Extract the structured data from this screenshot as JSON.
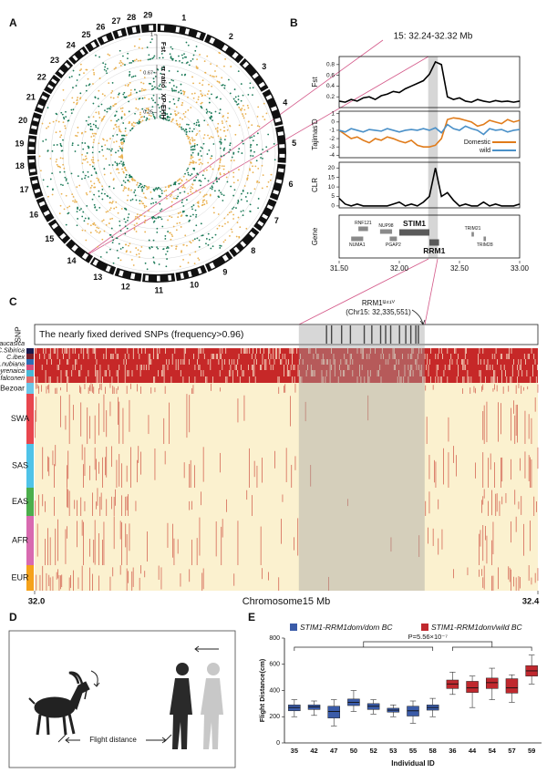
{
  "panel_labels": [
    "A",
    "B",
    "C",
    "D",
    "E"
  ],
  "flight_diagram": {
    "label": "Flight distance"
  },
  "chart_data": [
    {
      "type": "circos",
      "chromosomes": [
        "1",
        "2",
        "3",
        "4",
        "5",
        "6",
        "7",
        "8",
        "9",
        "10",
        "11",
        "12",
        "13",
        "14",
        "15",
        "16",
        "17",
        "18",
        "19",
        "20",
        "21",
        "22",
        "23",
        "24",
        "25",
        "26",
        "27",
        "28",
        "29"
      ],
      "lengths": [
        157,
        137,
        121,
        121,
        119,
        118,
        108,
        113,
        91,
        101,
        106,
        87,
        83,
        95,
        85,
        81,
        72,
        67,
        63,
        72,
        70,
        61,
        62,
        65,
        43,
        51,
        45,
        45,
        51
      ],
      "colors": [
        "#1b7a58",
        "#e9b04e"
      ],
      "tracks": [
        {
          "name": "Fst",
          "ylim": [
            0,
            1
          ],
          "yticks": [
            1
          ]
        },
        {
          "name": "π ratio",
          "ylim": [
            0,
            1
          ],
          "yticks": [
            0.67
          ]
        },
        {
          "name": "XP-EHH",
          "ylim": [
            0,
            1
          ],
          "yticks": [
            0.25
          ]
        }
      ]
    },
    {
      "type": "line",
      "title": "15: 32.24-32.32 Mb",
      "ylabel": "Fst",
      "x": [
        31.5,
        31.55,
        31.6,
        31.65,
        31.7,
        31.75,
        31.8,
        31.85,
        31.9,
        31.95,
        32.0,
        32.05,
        32.1,
        32.15,
        32.2,
        32.25,
        32.3,
        32.35,
        32.4,
        32.45,
        32.5,
        32.55,
        32.6,
        32.65,
        32.7,
        32.75,
        32.8,
        32.85,
        32.9,
        32.95,
        33.0
      ],
      "xlim": [
        31.5,
        33.0
      ],
      "ylim": [
        0,
        0.95
      ],
      "yticks": [
        0.2,
        0.4,
        0.6,
        0.8
      ],
      "highlight": [
        32.24,
        32.32
      ],
      "series": [
        {
          "color": "#000000",
          "values": [
            0.12,
            0.1,
            0.15,
            0.12,
            0.18,
            0.2,
            0.15,
            0.22,
            0.25,
            0.3,
            0.28,
            0.35,
            0.4,
            0.45,
            0.5,
            0.62,
            0.85,
            0.8,
            0.2,
            0.15,
            0.18,
            0.12,
            0.1,
            0.15,
            0.12,
            0.1,
            0.13,
            0.11,
            0.12,
            0.1,
            0.12
          ]
        }
      ]
    },
    {
      "type": "line",
      "ylabel": "Tajimas'D",
      "legend": "lower right",
      "x": [
        31.5,
        31.55,
        31.6,
        31.65,
        31.7,
        31.75,
        31.8,
        31.85,
        31.9,
        31.95,
        32.0,
        32.05,
        32.1,
        32.15,
        32.2,
        32.25,
        32.3,
        32.35,
        32.4,
        32.45,
        32.5,
        32.55,
        32.6,
        32.65,
        32.7,
        32.75,
        32.8,
        32.85,
        32.9,
        32.95,
        33.0
      ],
      "xlim": [
        31.5,
        33.0
      ],
      "ylim": [
        -4.3,
        1.3
      ],
      "yticks": [
        -4,
        -3,
        -2,
        -1,
        0,
        1
      ],
      "series": [
        {
          "name": "Domestic",
          "color": "#e07b1a",
          "values": [
            -1,
            -1.5,
            -2,
            -1.8,
            -2.2,
            -2.5,
            -2,
            -2.2,
            -1.8,
            -2,
            -2.3,
            -2.5,
            -2.2,
            -2.8,
            -3,
            -3,
            -2.8,
            -2,
            0.3,
            0.5,
            0.4,
            0.2,
            0,
            -0.5,
            -0.3,
            0.2,
            0,
            -0.2,
            0.3,
            0,
            0.2
          ]
        },
        {
          "name": "wild",
          "color": "#4a90c8",
          "values": [
            -1,
            -1.2,
            -0.8,
            -1,
            -1.2,
            -0.9,
            -1,
            -1.1,
            -0.8,
            -1,
            -1.2,
            -1,
            -0.9,
            -1,
            -0.8,
            -1,
            -0.7,
            -1.3,
            -0.3,
            -0.8,
            -1,
            -0.5,
            -0.8,
            -1,
            -1.5,
            -0.8,
            -1,
            -0.9,
            -1.2,
            -1,
            -0.9
          ]
        }
      ]
    },
    {
      "type": "line",
      "ylabel": "CLR",
      "x": [
        31.5,
        31.55,
        31.6,
        31.65,
        31.7,
        31.75,
        31.8,
        31.85,
        31.9,
        31.95,
        32.0,
        32.05,
        32.1,
        32.15,
        32.2,
        32.25,
        32.3,
        32.35,
        32.4,
        32.45,
        32.5,
        32.55,
        32.6,
        32.65,
        32.7,
        32.75,
        32.8,
        32.85,
        32.9,
        32.95,
        33.0
      ],
      "xlim": [
        31.5,
        33.0
      ],
      "ylim": [
        -1,
        23
      ],
      "yticks": [
        0,
        5,
        10,
        15,
        20
      ],
      "series": [
        {
          "color": "#000000",
          "values": [
            4,
            1,
            0,
            1,
            0,
            0,
            0,
            0,
            0,
            1,
            2,
            0,
            1,
            0,
            2,
            5,
            20,
            5,
            7,
            3,
            0,
            1,
            0,
            0,
            2,
            0,
            1,
            0,
            0,
            0,
            1
          ]
        }
      ]
    },
    {
      "type": "gene",
      "ylabel": "Gene",
      "xlim": [
        31.5,
        33.0
      ],
      "xticks": [
        {
          "value": 31.5,
          "label": "31.50"
        },
        {
          "value": 32.0,
          "label": "32.00"
        },
        {
          "value": 32.5,
          "label": "32.50"
        },
        {
          "value": 33.0,
          "label": "33.00"
        }
      ],
      "genes": [
        {
          "name": "NUMA1",
          "start": 31.6,
          "end": 31.7
        },
        {
          "name": "RNF121",
          "start": 31.66,
          "end": 31.74
        },
        {
          "name": "NUP98",
          "start": 31.84,
          "end": 31.94
        },
        {
          "name": "PGAP2",
          "start": 31.92,
          "end": 31.98
        },
        {
          "name": "STIM1",
          "start": 32.0,
          "end": 32.25,
          "emphasis": true
        },
        {
          "name": "RRM1",
          "start": 32.25,
          "end": 32.33,
          "emphasis": true
        },
        {
          "name": "TRIM21",
          "start": 32.6,
          "end": 32.62
        },
        {
          "name": "TRIM28",
          "start": 32.7,
          "end": 32.72
        }
      ]
    },
    {
      "type": "heatmap",
      "snp_label": "SNP",
      "snp_title": "The nearly fixed derived SNPs (frequency>0.96)",
      "annotation": [
        "RRM1ᴵ²⁴¹ⱽ",
        "(Chr15: 32,335,551)"
      ],
      "xlim": [
        32.0,
        32.4
      ],
      "xticks": [
        {
          "value": 32.0,
          "label": "32.0"
        },
        {
          "value": 32.4,
          "label": "32.4"
        }
      ],
      "xlabel": "Chromosome15 Mb",
      "highlight": [
        32.21,
        32.31
      ],
      "snp_positions": [
        32.232,
        32.236,
        32.244,
        32.251,
        32.262,
        32.268,
        32.275,
        32.279,
        32.283,
        32.29,
        32.295,
        32.299,
        32.303,
        32.305
      ],
      "groups": [
        {
          "name": "C.caucasica",
          "color": "#1a1a4e"
        },
        {
          "name": "C.Sibirica",
          "color": "#7a1f2b"
        },
        {
          "name": "C.ibex",
          "color": "#2d6db5"
        },
        {
          "name": "C.nubiana",
          "color": "#d94d7a"
        },
        {
          "name": "C.pyrenaica",
          "color": "#49b8d6"
        },
        {
          "name": "C.falconeri",
          "color": "#e06a6a"
        },
        {
          "name": "Bezoar",
          "color": "#6cc7e8"
        },
        {
          "name": "SWA",
          "color": "#e8464e"
        },
        {
          "name": "SAS",
          "color": "#4fc3e8"
        },
        {
          "name": "EAS",
          "color": "#4cae4c"
        },
        {
          "name": "AFR",
          "color": "#d86ab0"
        },
        {
          "name": "EUR",
          "color": "#f5a21b"
        }
      ]
    },
    {
      "type": "box",
      "ylabel": "Flight Distance(cm)",
      "xlabel": "Individual ID",
      "annotation": "P=5.56×10⁻⁷",
      "categories": [
        "35",
        "42",
        "47",
        "50",
        "52",
        "53",
        "55",
        "58",
        "36",
        "44",
        "54",
        "57",
        "59"
      ],
      "ylim": [
        0,
        800
      ],
      "yticks": [
        0,
        200,
        400,
        600,
        800
      ],
      "series": [
        {
          "name": "STIM1-RRM1dom/dom BC",
          "color": "#3a5ba8",
          "min": [
            200,
            210,
            130,
            240,
            220,
            200,
            150,
            200,
            null,
            null,
            null,
            null,
            null
          ],
          "q1": [
            245,
            255,
            190,
            285,
            255,
            235,
            205,
            250,
            null,
            null,
            null,
            null,
            null
          ],
          "median": [
            270,
            275,
            240,
            310,
            280,
            250,
            245,
            270,
            null,
            null,
            null,
            null,
            null
          ],
          "q3": [
            290,
            290,
            280,
            335,
            300,
            265,
            280,
            290,
            null,
            null,
            null,
            null,
            null
          ],
          "max": [
            330,
            320,
            330,
            400,
            330,
            290,
            320,
            340,
            null,
            null,
            null,
            null,
            null
          ]
        },
        {
          "name": "STIM1-RRM1dom/wild BC",
          "color": "#c0282e",
          "min": [
            null,
            null,
            null,
            null,
            null,
            null,
            null,
            null,
            370,
            270,
            330,
            310,
            450
          ],
          "q1": [
            null,
            null,
            null,
            null,
            null,
            null,
            null,
            null,
            415,
            385,
            415,
            380,
            510
          ],
          "median": [
            null,
            null,
            null,
            null,
            null,
            null,
            null,
            null,
            450,
            420,
            460,
            420,
            550
          ],
          "q3": [
            null,
            null,
            null,
            null,
            null,
            null,
            null,
            null,
            480,
            470,
            495,
            490,
            590
          ],
          "max": [
            null,
            null,
            null,
            null,
            null,
            null,
            null,
            null,
            540,
            510,
            570,
            520,
            670
          ]
        }
      ]
    }
  ]
}
